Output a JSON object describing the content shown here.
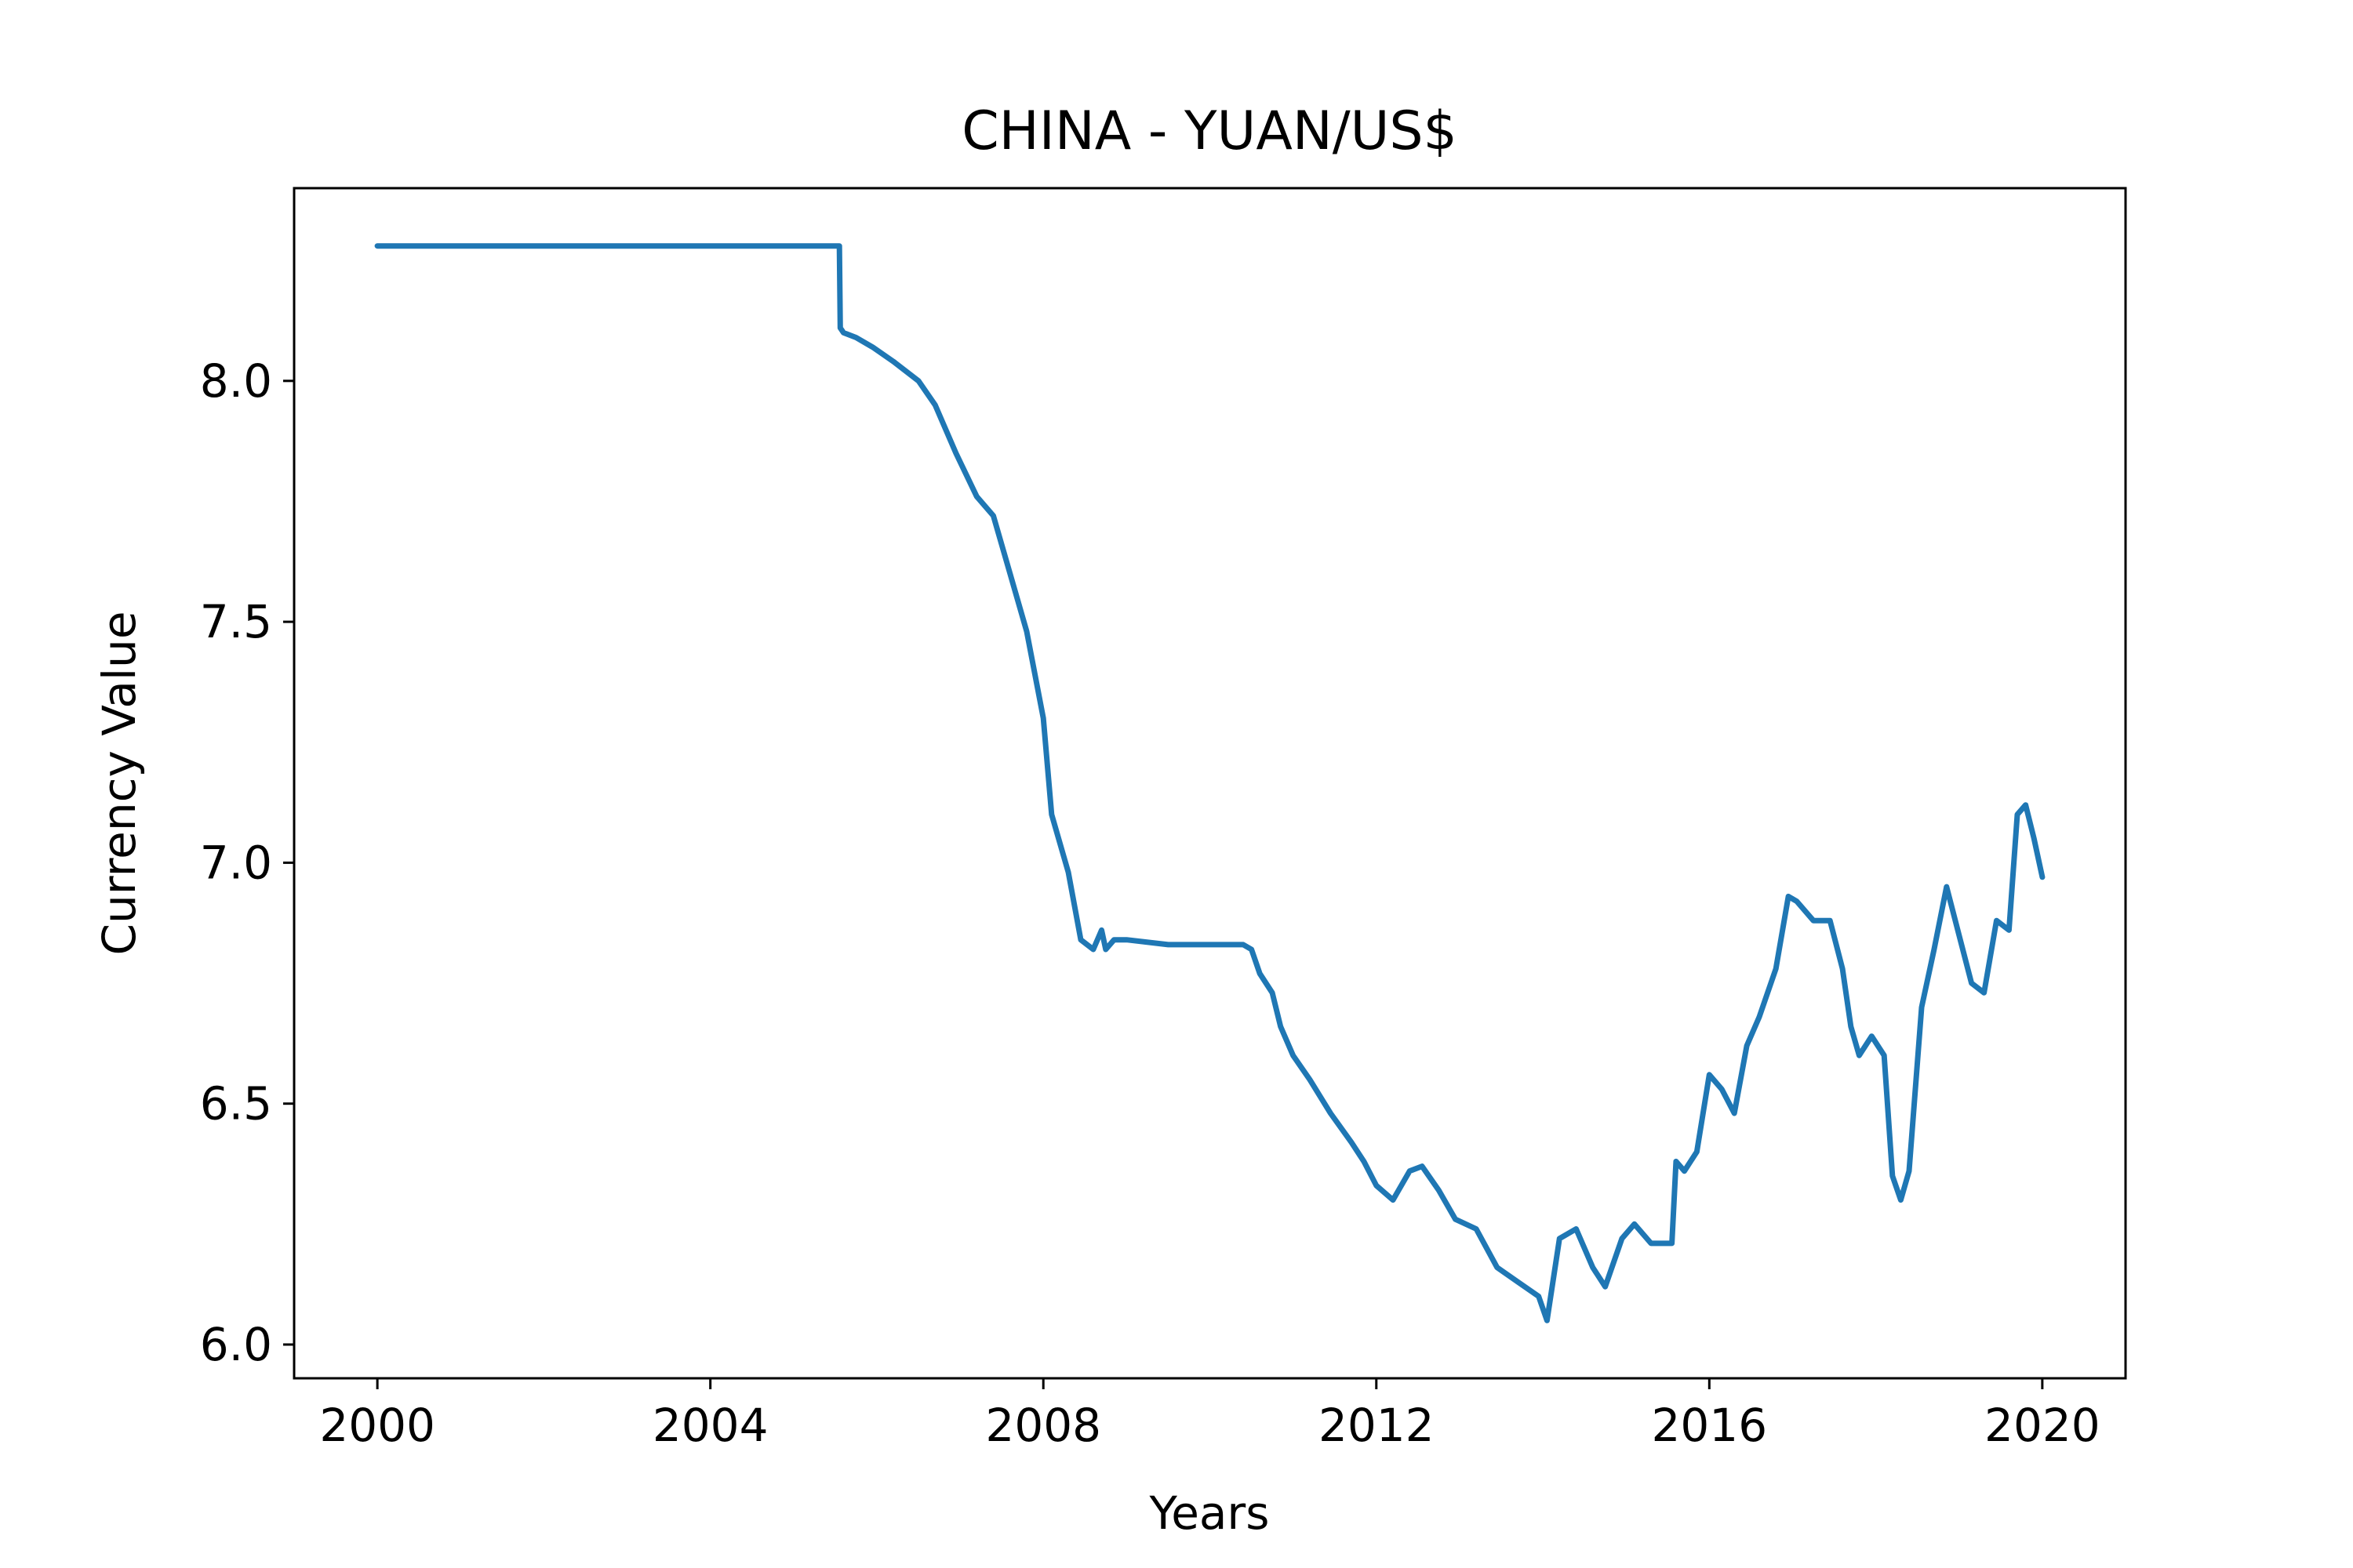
{
  "chart_data": {
    "type": "line",
    "title": "CHINA - YUAN/US$",
    "xlabel": "Years",
    "ylabel": "Currency Value",
    "xlim": [
      1999.0,
      2021.0
    ],
    "ylim": [
      5.93,
      8.4
    ],
    "x_ticks": [
      2000,
      2004,
      2008,
      2012,
      2016,
      2020
    ],
    "x_tick_labels": [
      "2000",
      "2004",
      "2008",
      "2012",
      "2016",
      "2020"
    ],
    "y_ticks": [
      6.0,
      6.5,
      7.0,
      7.5,
      8.0
    ],
    "y_tick_labels": [
      "6.0",
      "6.5",
      "7.0",
      "7.5",
      "8.0"
    ],
    "grid": false,
    "legend": false,
    "series": [
      {
        "color": "#1f77b4",
        "x": [
          2000.0,
          2001.0,
          2002.0,
          2003.0,
          2004.0,
          2005.0,
          2005.55,
          2005.56,
          2005.6,
          2005.75,
          2005.95,
          2006.2,
          2006.5,
          2006.7,
          2006.95,
          2007.2,
          2007.4,
          2007.6,
          2007.8,
          2008.0,
          2008.1,
          2008.3,
          2008.45,
          2008.6,
          2008.7,
          2008.75,
          2008.85,
          2009.0,
          2009.5,
          2010.0,
          2010.4,
          2010.5,
          2010.6,
          2010.75,
          2010.85,
          2011.0,
          2011.2,
          2011.45,
          2011.7,
          2011.85,
          2012.0,
          2012.2,
          2012.4,
          2012.55,
          2012.75,
          2012.95,
          2013.2,
          2013.45,
          2013.7,
          2013.95,
          2014.05,
          2014.2,
          2014.4,
          2014.6,
          2014.75,
          2014.95,
          2015.1,
          2015.3,
          2015.55,
          2015.6,
          2015.7,
          2015.85,
          2016.0,
          2016.15,
          2016.3,
          2016.45,
          2016.6,
          2016.8,
          2016.95,
          2017.05,
          2017.25,
          2017.45,
          2017.6,
          2017.7,
          2017.8,
          2017.95,
          2018.1,
          2018.2,
          2018.3,
          2018.4,
          2018.55,
          2018.7,
          2018.85,
          2019.0,
          2019.15,
          2019.3,
          2019.45,
          2019.6,
          2019.7,
          2019.8,
          2019.9,
          2020.0
        ],
        "y": [
          8.28,
          8.28,
          8.28,
          8.28,
          8.28,
          8.28,
          8.28,
          8.11,
          8.1,
          8.09,
          8.07,
          8.04,
          8.0,
          7.95,
          7.85,
          7.76,
          7.72,
          7.6,
          7.48,
          7.3,
          7.1,
          6.98,
          6.84,
          6.82,
          6.86,
          6.82,
          6.84,
          6.84,
          6.83,
          6.83,
          6.83,
          6.82,
          6.77,
          6.73,
          6.66,
          6.6,
          6.55,
          6.48,
          6.42,
          6.38,
          6.33,
          6.3,
          6.36,
          6.37,
          6.32,
          6.26,
          6.24,
          6.16,
          6.13,
          6.1,
          6.05,
          6.22,
          6.24,
          6.16,
          6.12,
          6.22,
          6.25,
          6.21,
          6.21,
          6.38,
          6.36,
          6.4,
          6.56,
          6.53,
          6.48,
          6.62,
          6.68,
          6.78,
          6.93,
          6.92,
          6.88,
          6.88,
          6.78,
          6.66,
          6.6,
          6.64,
          6.6,
          6.35,
          6.3,
          6.36,
          6.7,
          6.82,
          6.95,
          6.85,
          6.75,
          6.73,
          6.88,
          6.86,
          7.1,
          7.12,
          7.05,
          6.97
        ]
      }
    ]
  }
}
